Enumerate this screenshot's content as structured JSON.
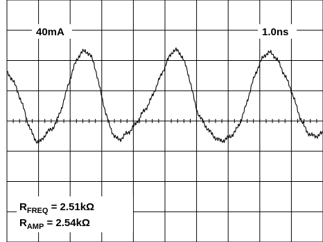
{
  "chart_data": {
    "type": "line",
    "title": "",
    "grid": true,
    "x_divisions": 10,
    "y_divisions": 8,
    "scale": {
      "vertical": "40mA",
      "horizontal": "1.0ns"
    },
    "annotation": {
      "line1": {
        "base": "R",
        "sub": "FREQ",
        "rest": " = 2.51kΩ"
      },
      "line2": {
        "base": "R",
        "sub": "AMP",
        "rest": " = 2.54kΩ"
      }
    },
    "series": [
      {
        "x": [
          0.0,
          0.25,
          0.5,
          0.75,
          1.0,
          1.25,
          1.5,
          1.75,
          2.0,
          2.25,
          2.5,
          2.75,
          3.0,
          3.25,
          3.5,
          3.75,
          4.0,
          4.25,
          4.5,
          4.75,
          5.0,
          5.25,
          5.5,
          5.75,
          6.0,
          6.25,
          6.5,
          6.75,
          7.0,
          7.25,
          7.5,
          7.75,
          8.0,
          8.25,
          8.5,
          8.75,
          9.0,
          9.25,
          9.5,
          9.75,
          10.0
        ],
        "y": [
          1.6,
          1.2,
          0.5,
          -0.3,
          -0.7,
          -0.4,
          -0.15,
          0.5,
          1.4,
          2.1,
          2.3,
          1.9,
          0.8,
          -0.15,
          -0.6,
          -0.45,
          -0.2,
          0.2,
          0.6,
          1.2,
          1.8,
          2.3,
          2.2,
          1.5,
          0.4,
          -0.1,
          -0.45,
          -0.65,
          -0.55,
          -0.3,
          0.3,
          1.2,
          1.9,
          2.25,
          2.1,
          1.6,
          1.0,
          0.2,
          -0.35,
          -0.5,
          -0.4
        ]
      }
    ]
  }
}
